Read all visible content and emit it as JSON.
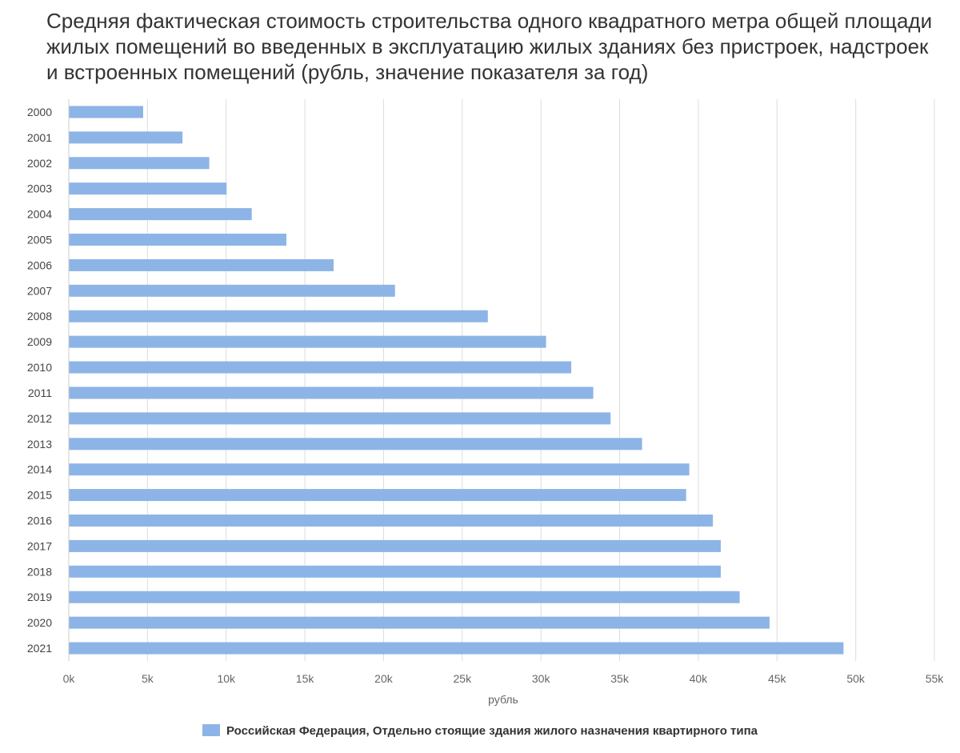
{
  "chart_data": {
    "type": "bar",
    "orientation": "horizontal",
    "title": "Средняя фактическая стоимость строительства одного квадратного метра общей площади жилых помещений во введенных в эксплуатацию жилых зданиях без пристроек, надстроек и встроенных помещений (рубль, значение показателя за год)",
    "xlabel": "рубль",
    "ylabel": "",
    "xlim": [
      0,
      55000
    ],
    "ticks": [
      {
        "value": 0,
        "label": "0k"
      },
      {
        "value": 5000,
        "label": "5k"
      },
      {
        "value": 10000,
        "label": "10k"
      },
      {
        "value": 15000,
        "label": "15k"
      },
      {
        "value": 20000,
        "label": "20k"
      },
      {
        "value": 25000,
        "label": "25k"
      },
      {
        "value": 30000,
        "label": "30k"
      },
      {
        "value": 35000,
        "label": "35k"
      },
      {
        "value": 40000,
        "label": "40k"
      },
      {
        "value": 45000,
        "label": "45k"
      },
      {
        "value": 50000,
        "label": "50k"
      },
      {
        "value": 55000,
        "label": "55k"
      }
    ],
    "grid": true,
    "legend_position": "bottom-center",
    "categories": [
      "2000",
      "2001",
      "2002",
      "2003",
      "2004",
      "2005",
      "2006",
      "2007",
      "2008",
      "2009",
      "2010",
      "2011",
      "2012",
      "2013",
      "2014",
      "2015",
      "2016",
      "2017",
      "2018",
      "2019",
      "2020",
      "2021"
    ],
    "series": [
      {
        "name": "Российская Федерация, Отдельно стоящие здания жилого назначения квартирного типа",
        "color": "#8db4e6",
        "values": [
          4700,
          7200,
          8900,
          10000,
          11600,
          13800,
          16800,
          20700,
          26600,
          30300,
          31900,
          33300,
          34400,
          36400,
          39400,
          39200,
          40900,
          41400,
          41400,
          42600,
          44500,
          49200
        ]
      }
    ]
  }
}
